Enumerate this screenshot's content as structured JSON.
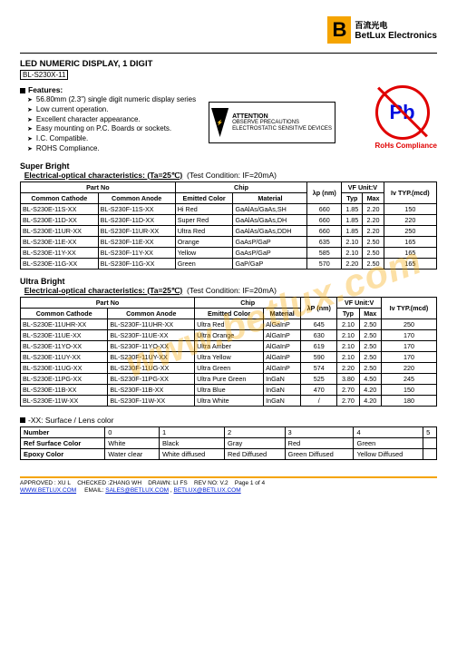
{
  "logo": {
    "cn": "百流光电",
    "en": "BetLux Electronics"
  },
  "title": "LED NUMERIC DISPLAY, 1 DIGIT",
  "product": "BL-S230X-11",
  "featuresLabel": "Features:",
  "features": [
    "56.80mm (2.3\") single digit numeric display series",
    "Low current operation.",
    "Excellent character appearance.",
    "Easy mounting on P.C. Boards or sockets.",
    "I.C. Compatible.",
    "ROHS Compliance."
  ],
  "attention": {
    "head": "ATTENTION",
    "body": "OBSERVE PRECAUTIONS ELECTROSTATIC SENSITIVE DEVICES"
  },
  "pb": {
    "symbol": "Pb",
    "label": "RoHs Compliance"
  },
  "superBright": {
    "head": "Super Bright",
    "sub1": "Electrical-optical characteristics: (Ta=25℃)",
    "sub2": "(Test Condition: IF=20mA)",
    "hdr_partno": "Part No",
    "hdr_cc": "Common Cathode",
    "hdr_ca": "Common Anode",
    "hdr_chip": "Chip",
    "hdr_ec": "Emitted Color",
    "hdr_mat": "Material",
    "hdr_lp": "λp (nm)",
    "hdr_vf": "VF Unit:V",
    "hdr_typ": "Typ",
    "hdr_max": "Max",
    "hdr_iv": "Iv TYP.(mcd)",
    "rows": [
      {
        "cc": "BL-S230E-11S-XX",
        "ca": "BL-S230F-11S-XX",
        "ec": "Hi Red",
        "mat": "GaAlAs/GaAs,SH",
        "lp": "660",
        "typ": "1.85",
        "max": "2.20",
        "iv": "150"
      },
      {
        "cc": "BL-S230E-11D-XX",
        "ca": "BL-S230F-11D-XX",
        "ec": "Super Red",
        "mat": "GaAlAs/GaAs,DH",
        "lp": "660",
        "typ": "1.85",
        "max": "2.20",
        "iv": "220"
      },
      {
        "cc": "BL-S230E-11UR-XX",
        "ca": "BL-S230F-11UR-XX",
        "ec": "Ultra Red",
        "mat": "GaAlAs/GaAs,DDH",
        "lp": "660",
        "typ": "1.85",
        "max": "2.20",
        "iv": "250"
      },
      {
        "cc": "BL-S230E-11E-XX",
        "ca": "BL-S230F-11E-XX",
        "ec": "Orange",
        "mat": "GaAsP/GaP",
        "lp": "635",
        "typ": "2.10",
        "max": "2.50",
        "iv": "165"
      },
      {
        "cc": "BL-S230E-11Y-XX",
        "ca": "BL-S230F-11Y-XX",
        "ec": "Yellow",
        "mat": "GaAsP/GaP",
        "lp": "585",
        "typ": "2.10",
        "max": "2.50",
        "iv": "165"
      },
      {
        "cc": "BL-S230E-11G-XX",
        "ca": "BL-S230F-11G-XX",
        "ec": "Green",
        "mat": "GaP/GaP",
        "lp": "570",
        "typ": "2.20",
        "max": "2.50",
        "iv": "165"
      }
    ]
  },
  "ultraBright": {
    "head": "Ultra Bright",
    "sub1": "Electrical-optical characteristics: (Ta=25℃)",
    "sub2": "(Test Condition: IF=20mA)",
    "hdr_partno": "Part No",
    "hdr_cc": "Common Cathode",
    "hdr_ca": "Common Anode",
    "hdr_chip": "Chip",
    "hdr_ec": "Emitted Color",
    "hdr_mat": "Material",
    "hdr_lp": "λP (nm)",
    "hdr_vf": "VF Unit:V",
    "hdr_typ": "Typ",
    "hdr_max": "Max",
    "hdr_iv": "Iv TYP.(mcd)",
    "rows": [
      {
        "cc": "BL-S230E-11UHR-XX",
        "ca": "BL-S230F-11UHR-XX",
        "ec": "Ultra Red",
        "mat": "AlGaInP",
        "lp": "645",
        "typ": "2.10",
        "max": "2.50",
        "iv": "250"
      },
      {
        "cc": "BL-S230E-11UE-XX",
        "ca": "BL-S230F-11UE-XX",
        "ec": "Ultra Orange",
        "mat": "AlGaInP",
        "lp": "630",
        "typ": "2.10",
        "max": "2.50",
        "iv": "170"
      },
      {
        "cc": "BL-S230E-11YO-XX",
        "ca": "BL-S230F-11YO-XX",
        "ec": "Ultra Amber",
        "mat": "AlGaInP",
        "lp": "619",
        "typ": "2.10",
        "max": "2.50",
        "iv": "170"
      },
      {
        "cc": "BL-S230E-11UY-XX",
        "ca": "BL-S230F-11UY-XX",
        "ec": "Ultra Yellow",
        "mat": "AlGaInP",
        "lp": "590",
        "typ": "2.10",
        "max": "2.50",
        "iv": "170"
      },
      {
        "cc": "BL-S230E-11UG-XX",
        "ca": "BL-S230F-11UG-XX",
        "ec": "Ultra Green",
        "mat": "AlGaInP",
        "lp": "574",
        "typ": "2.20",
        "max": "2.50",
        "iv": "220"
      },
      {
        "cc": "BL-S230E-11PG-XX",
        "ca": "BL-S230F-11PG-XX",
        "ec": "Ultra Pure Green",
        "mat": "InGaN",
        "lp": "525",
        "typ": "3.80",
        "max": "4.50",
        "iv": "245"
      },
      {
        "cc": "BL-S230E-11B-XX",
        "ca": "BL-S230F-11B-XX",
        "ec": "Ultra Blue",
        "mat": "InGaN",
        "lp": "470",
        "typ": "2.70",
        "max": "4.20",
        "iv": "150"
      },
      {
        "cc": "BL-S230E-11W-XX",
        "ca": "BL-S230F-11W-XX",
        "ec": "Ultra White",
        "mat": "InGaN",
        "lp": "/",
        "typ": "2.70",
        "max": "4.20",
        "iv": "180"
      }
    ]
  },
  "lens": {
    "head": "-XX: Surface / Lens color",
    "hdr": [
      "Number",
      "0",
      "1",
      "2",
      "3",
      "4",
      "5"
    ],
    "r1": [
      "Ref Surface Color",
      "White",
      "Black",
      "Gray",
      "Red",
      "Green",
      ""
    ],
    "r2": [
      "Epoxy Color",
      "Water clear",
      "White diffused",
      "Red Diffused",
      "Green Diffused",
      "Yellow Diffused",
      ""
    ]
  },
  "watermark": "www.betlux.com",
  "footer": {
    "line1a": "APPROVED : XU L",
    "line1b": "CHECKED :ZHANG WH",
    "line1c": "DRAWN: LI FS",
    "line1d": "REV NO: V.2",
    "line1e": "Page 1 of 4",
    "site": "WWW.BETLUX.COM",
    "emailLabel": "EMAIL:",
    "email1": "SALES@BETLUX.COM",
    "sep": ",",
    "email2": "BETLUX@BETLUX.COM"
  }
}
